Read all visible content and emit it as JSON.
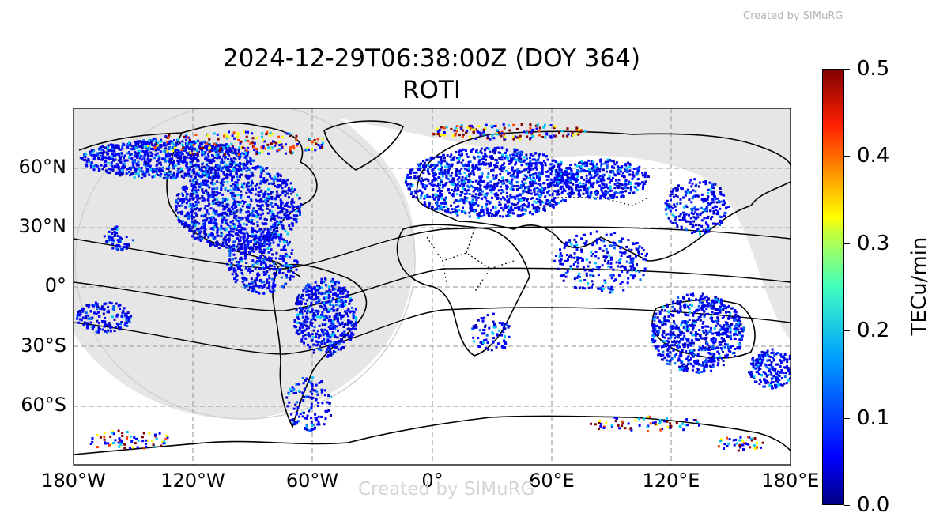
{
  "watermark_top": "Created by SIMuRG",
  "watermark_center": "Created by SIMuRG",
  "title": {
    "line1": "2024-12-29T06:38:00Z (DOY 364)",
    "line2": "ROTI"
  },
  "map": {
    "projection": "plate-carree",
    "x_ticks": [
      "180°W",
      "120°W",
      "60°W",
      "0°",
      "60°E",
      "120°E",
      "180°E"
    ],
    "y_ticks": [
      "60°N",
      "30°N",
      "0°",
      "30°S",
      "60°S"
    ],
    "gridlines": "dashed gray",
    "night_shading": "light gray",
    "ocean_color": "#e6e6e6"
  },
  "colorbar": {
    "colormap": "jet",
    "label": "TECu/min",
    "min": 0.0,
    "max": 0.5,
    "ticks": [
      "0.0",
      "0.1",
      "0.2",
      "0.3",
      "0.4",
      "0.5"
    ],
    "colors": [
      "#000080",
      "#0000ff",
      "#0080ff",
      "#00ffff",
      "#80ff80",
      "#ffff00",
      "#ff8000",
      "#ff0000",
      "#800000"
    ]
  }
}
